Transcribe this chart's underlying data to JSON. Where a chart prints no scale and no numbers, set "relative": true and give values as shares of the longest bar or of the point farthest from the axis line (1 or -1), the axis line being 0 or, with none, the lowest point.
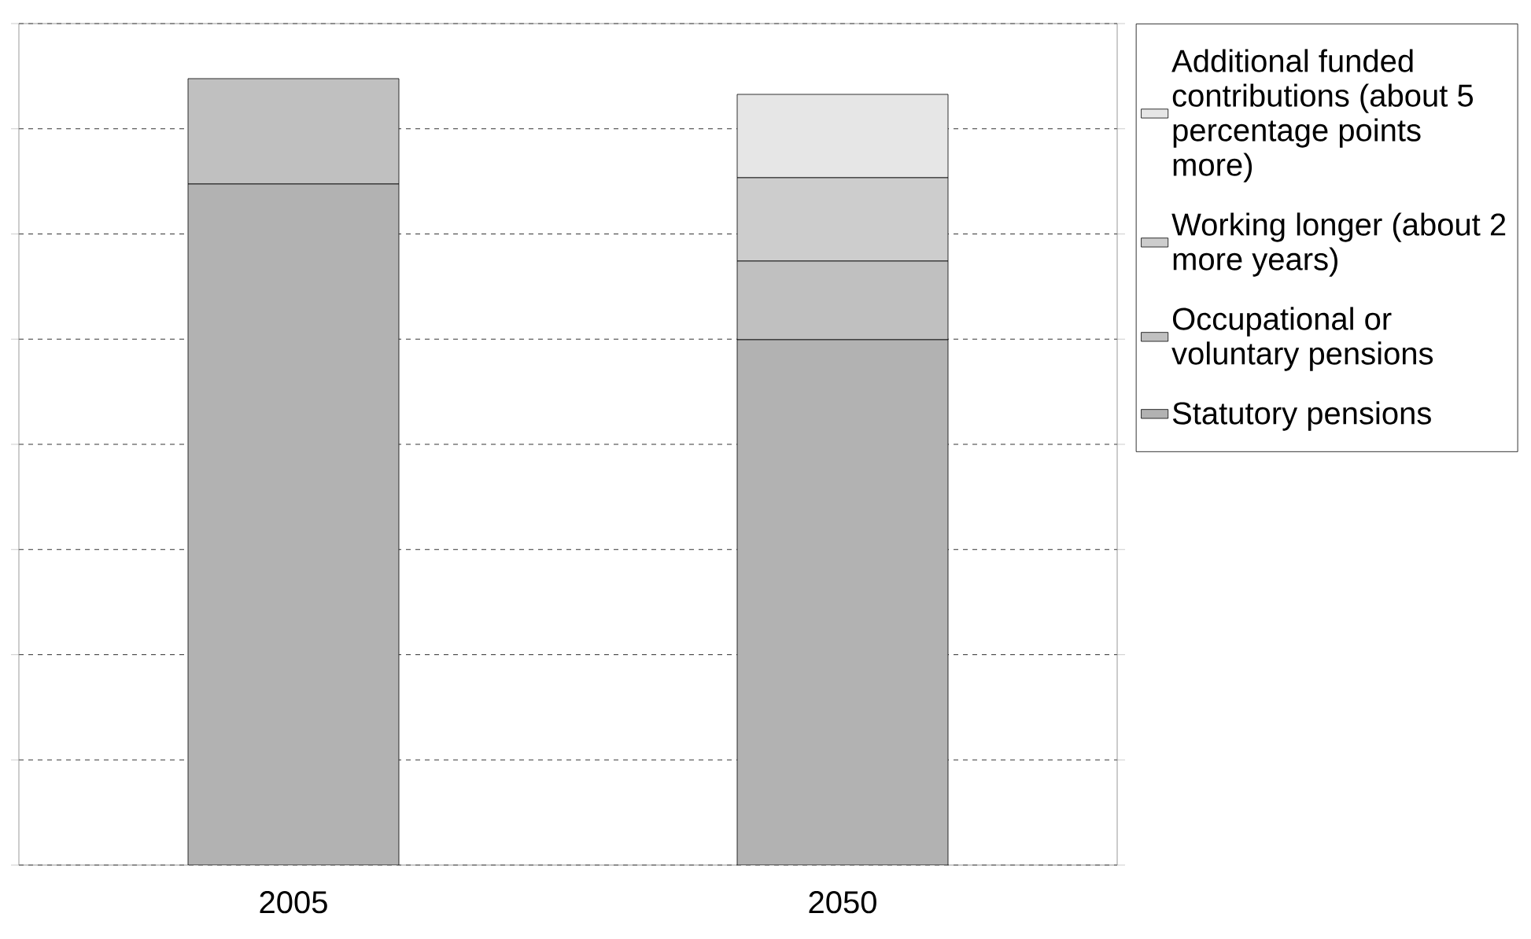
{
  "chart_data": {
    "type": "bar",
    "stacked": true,
    "relative": true,
    "categories": [
      "2005",
      "2050"
    ],
    "series": [
      {
        "name": "Statutory pensions",
        "color": "#b2b2b2",
        "values": [
          0.866,
          0.668
        ]
      },
      {
        "name": "Occupational or voluntary pensions",
        "color": "#c0c0c0",
        "values": [
          0.134,
          0.1
        ]
      },
      {
        "name": "Working longer (about 2 more years)",
        "color": "#cdcdcd",
        "values": [
          null,
          0.106
        ]
      },
      {
        "name": "Additional funded contributions (about 5 percentage points more)",
        "color": "#e6e6e6",
        "values": [
          null,
          0.106
        ]
      }
    ],
    "grid": "y",
    "legend": "right"
  }
}
